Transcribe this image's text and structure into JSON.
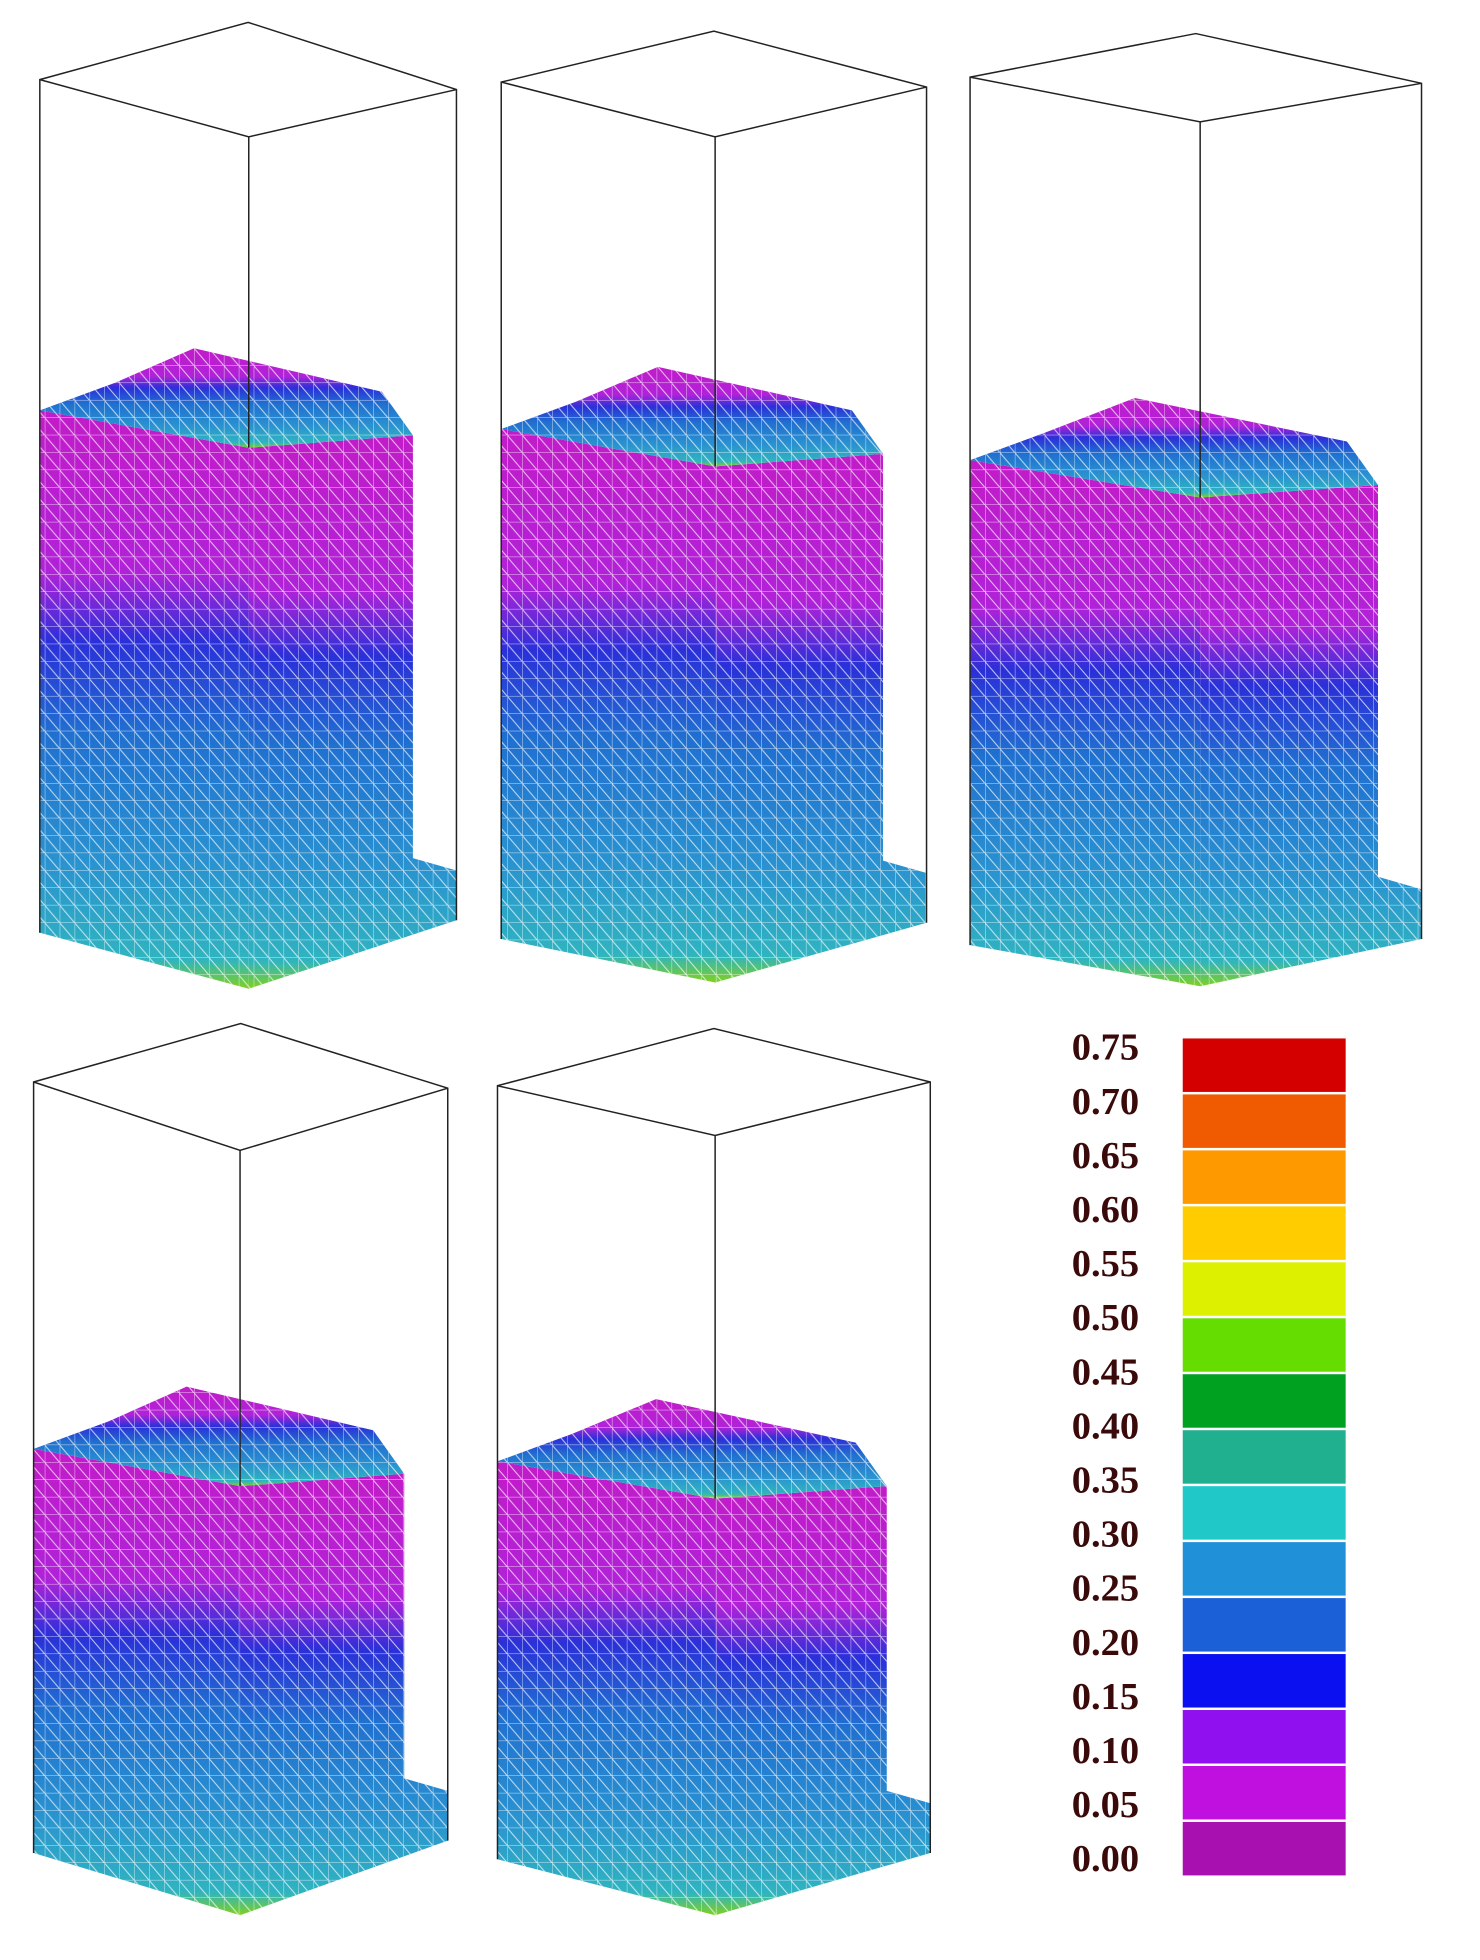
{
  "legend": {
    "labels": [
      "0.75",
      "0.70",
      "0.65",
      "0.60",
      "0.55",
      "0.50",
      "0.45",
      "0.40",
      "0.35",
      "0.30",
      "0.25",
      "0.20",
      "0.15",
      "0.10",
      "0.05",
      "0.00"
    ],
    "colors": [
      "#d40000",
      "#f05a00",
      "#ff9900",
      "#ffcc00",
      "#ddf000",
      "#66dd00",
      "#00a020",
      "#20b090",
      "#20c8c8",
      "#2090d8",
      "#1c60d8",
      "#0a10f0",
      "#9010f0",
      "#c010e0",
      "#a810b0"
    ]
  }
}
